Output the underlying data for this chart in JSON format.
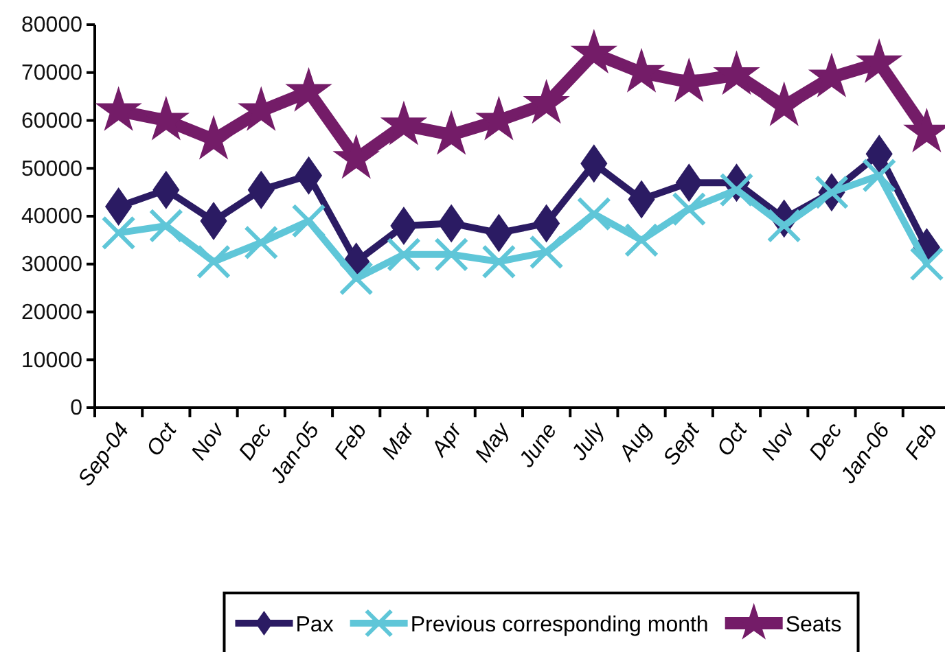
{
  "chart_data": {
    "type": "line",
    "categories": [
      "Sep-04",
      "Oct",
      "Nov",
      "Dec",
      "Jan-05",
      "Feb",
      "Mar",
      "Apr",
      "May",
      "June",
      "July",
      "Aug",
      "Sept",
      "Oct",
      "Nov",
      "Dec",
      "Jan-06",
      "Feb"
    ],
    "series": [
      {
        "name": "Pax",
        "color": "#2b1b63",
        "marker": "diamond",
        "values": [
          42000,
          45500,
          39000,
          45500,
          48500,
          30500,
          38000,
          38500,
          36500,
          38500,
          51000,
          43500,
          47000,
          47000,
          39500,
          45000,
          53000,
          33500
        ]
      },
      {
        "name": "Previous corresponding month",
        "color": "#5fc6d8",
        "marker": "cross",
        "values": [
          36500,
          38000,
          30500,
          34500,
          39000,
          27000,
          32000,
          32000,
          30500,
          32500,
          40500,
          35000,
          41500,
          45500,
          38000,
          45000,
          48500,
          30000
        ]
      },
      {
        "name": "Seats",
        "color": "#741c68",
        "marker": "star",
        "values": [
          62000,
          60000,
          56000,
          62000,
          66000,
          52000,
          59000,
          57000,
          60000,
          63500,
          74000,
          70000,
          68000,
          69500,
          63000,
          69000,
          72000,
          57500
        ]
      }
    ],
    "ylim": [
      0,
      80000
    ],
    "yticks": [
      0,
      10000,
      20000,
      30000,
      40000,
      50000,
      60000,
      70000,
      80000
    ],
    "grid": false,
    "legend": "bottom",
    "line_style": "solid"
  }
}
